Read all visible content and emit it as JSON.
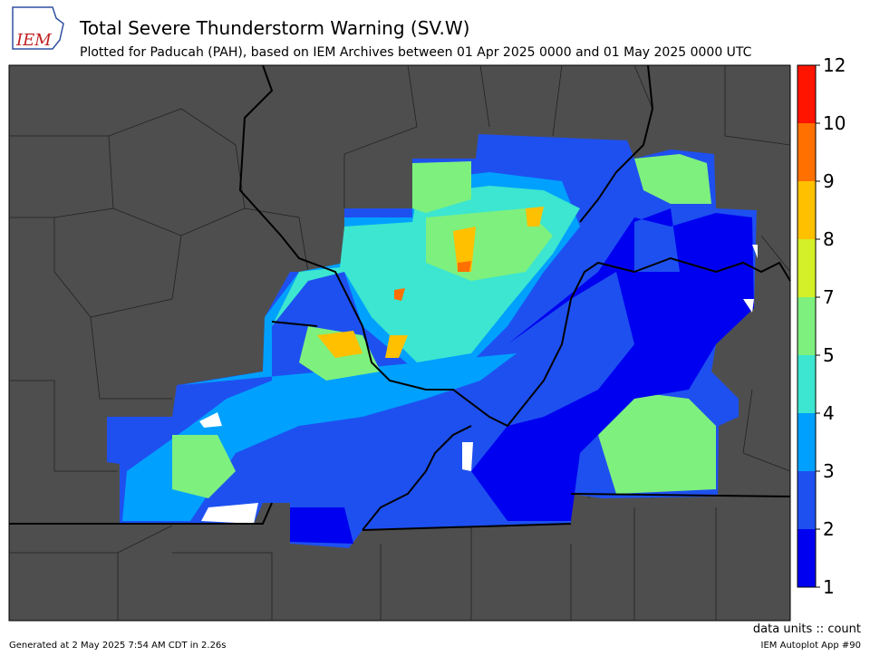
{
  "header": {
    "logo": "IEM",
    "title": "Total Severe Thunderstorm Warning (SV.W)",
    "subtitle": "Plotted for Paducah (PAH), based on IEM Archives  between 01 Apr 2025 0000 and 01 May 2025 0000 UTC"
  },
  "colorbar": {
    "ticks": [
      1,
      2,
      3,
      4,
      5,
      7,
      8,
      9,
      10,
      12
    ],
    "colors": [
      "#0000f0",
      "#1e50f0",
      "#00a0ff",
      "#3ce6d0",
      "#7ef07e",
      "#d4f028",
      "#ffc000",
      "#ff7000",
      "#ff1400"
    ],
    "units": "data units :: count"
  },
  "footer": {
    "generated": "Generated at 2 May 2025 7:54 AM CDT in 2.26s",
    "app": "IEM Autoplot App #90"
  }
}
